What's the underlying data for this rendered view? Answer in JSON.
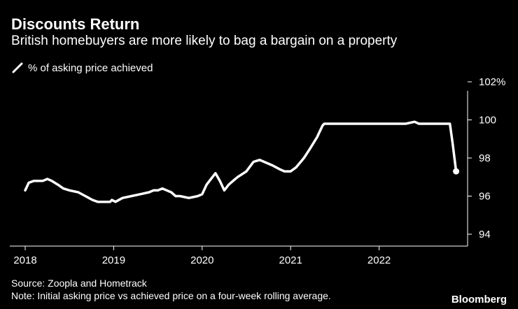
{
  "title": "Discounts Return",
  "subtitle": "British homebuyers are more likely to bag a bargain on a property",
  "legend": {
    "label": "% of asking price achieved",
    "color": "#ffffff"
  },
  "source": "Source: Zoopla and Hometrack",
  "note": "Note: Initial asking price vs achieved price on a four-week rolling average.",
  "brand": "Bloomberg",
  "chart_data": {
    "type": "line",
    "title": "Discounts Return",
    "xlabel": "",
    "ylabel": "% of asking price achieved",
    "xlim": [
      2018.0,
      2023.0
    ],
    "ylim": [
      94,
      102
    ],
    "y_ticks": [
      94,
      96,
      98,
      100,
      102
    ],
    "y_tick_labels": [
      "94",
      "96",
      "98",
      "100",
      "102%"
    ],
    "x_ticks": [
      2018,
      2019,
      2020,
      2021,
      2022
    ],
    "x_tick_labels": [
      "2018",
      "2019",
      "2020",
      "2021",
      "2022"
    ],
    "grid": false,
    "legend_position": "top-left",
    "series": [
      {
        "name": "% of asking price achieved",
        "x": [
          2018.0,
          2018.04,
          2018.1,
          2018.2,
          2018.25,
          2018.3,
          2018.37,
          2018.43,
          2018.5,
          2018.6,
          2018.68,
          2018.76,
          2018.82,
          2018.88,
          2018.93,
          2018.96,
          2018.98,
          2019.02,
          2019.1,
          2019.2,
          2019.3,
          2019.4,
          2019.45,
          2019.5,
          2019.55,
          2019.6,
          2019.65,
          2019.7,
          2019.75,
          2019.85,
          2019.95,
          2020.0,
          2020.05,
          2020.1,
          2020.15,
          2020.2,
          2020.25,
          2020.3,
          2020.35,
          2020.4,
          2020.5,
          2020.58,
          2020.65,
          2020.7,
          2020.8,
          2020.88,
          2020.93,
          2021.0,
          2021.06,
          2021.15,
          2021.22,
          2021.3,
          2021.36,
          2021.38,
          2021.5,
          2021.7,
          2022.0,
          2022.3,
          2022.4,
          2022.45,
          2022.6,
          2022.75,
          2022.8,
          2022.83,
          2022.87
        ],
        "values": [
          96.3,
          96.7,
          96.8,
          96.8,
          96.9,
          96.8,
          96.6,
          96.4,
          96.3,
          96.2,
          96.0,
          95.8,
          95.7,
          95.7,
          95.7,
          95.7,
          95.8,
          95.7,
          95.9,
          96.0,
          96.1,
          96.2,
          96.3,
          96.3,
          96.4,
          96.3,
          96.2,
          96.0,
          96.0,
          95.9,
          96.0,
          96.1,
          96.6,
          96.9,
          97.2,
          96.8,
          96.3,
          96.6,
          96.8,
          97.0,
          97.3,
          97.8,
          97.9,
          97.8,
          97.6,
          97.4,
          97.3,
          97.3,
          97.5,
          98.0,
          98.5,
          99.1,
          99.7,
          99.8,
          99.8,
          99.8,
          99.8,
          99.8,
          99.9,
          99.8,
          99.8,
          99.8,
          99.8,
          98.8,
          97.3
        ]
      }
    ]
  }
}
